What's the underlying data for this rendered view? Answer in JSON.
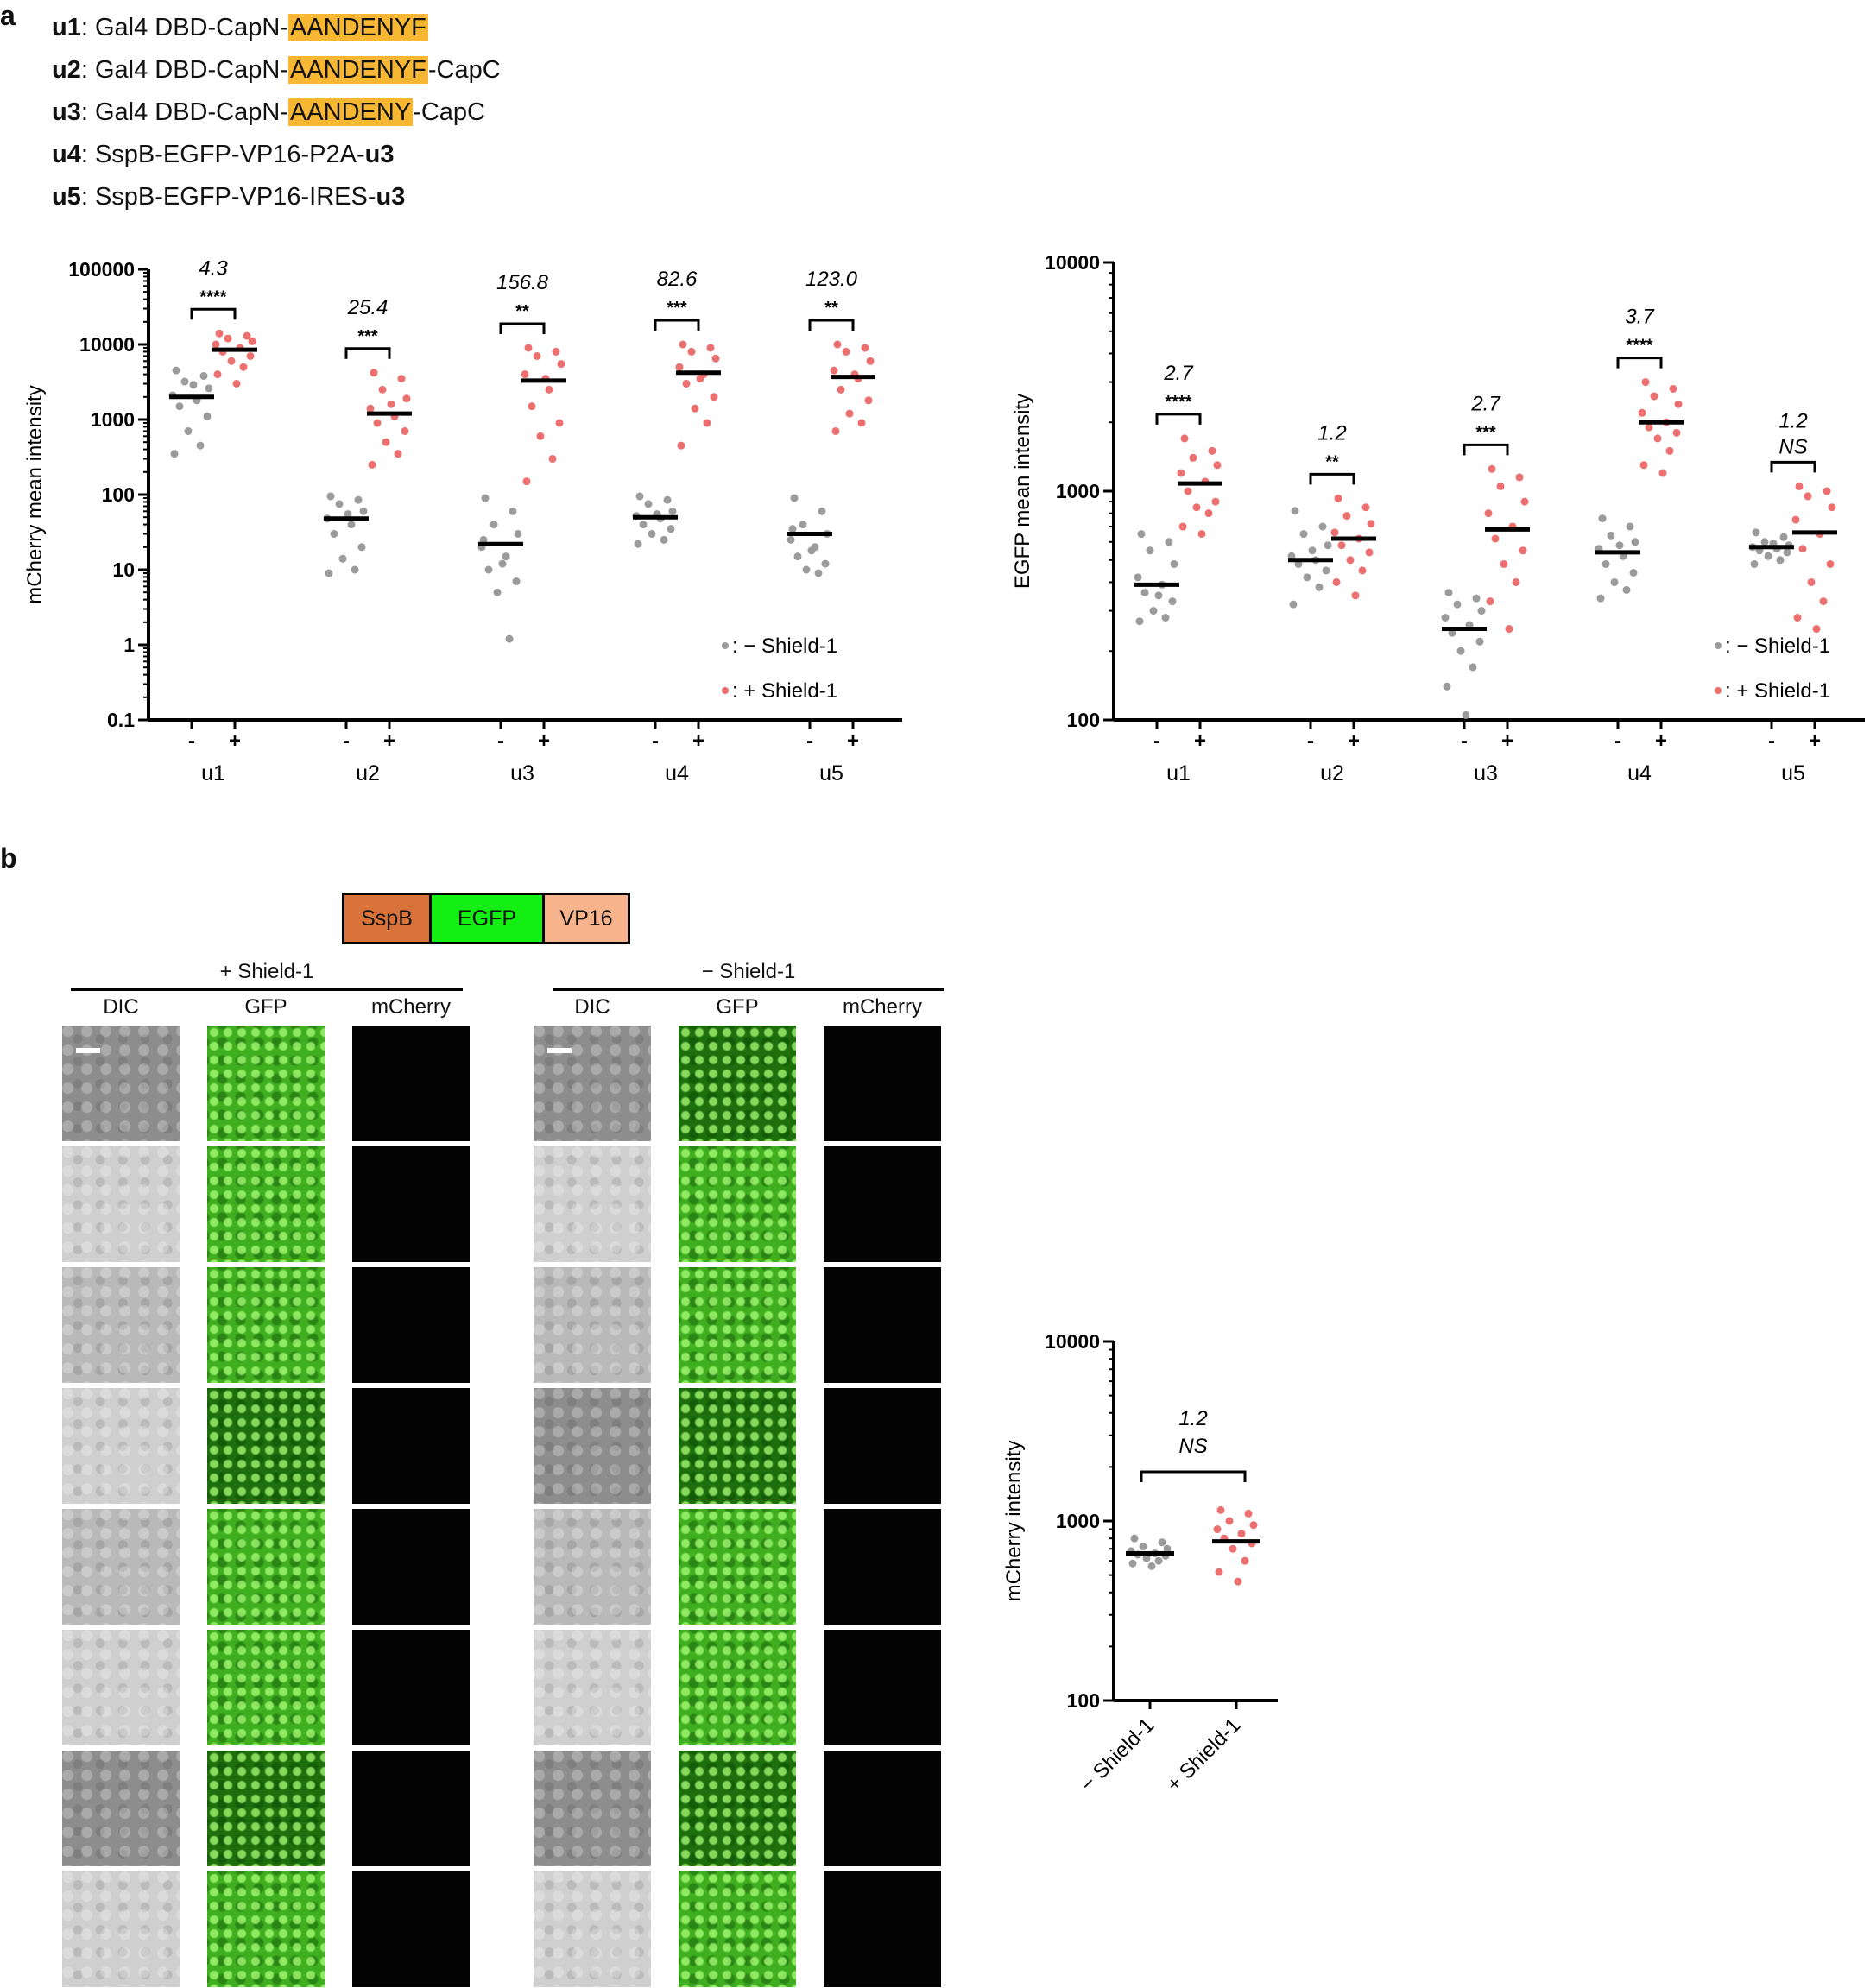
{
  "panel_a_label": "a",
  "panel_b_label": "b",
  "constructs": [
    {
      "id": "u1",
      "pre": "Gal4 DBD-CapN-",
      "hl": "AANDENYF",
      "post": "",
      "bold_tail": ""
    },
    {
      "id": "u2",
      "pre": "Gal4 DBD-CapN-",
      "hl": "AANDENYF",
      "post": "-CapC",
      "bold_tail": ""
    },
    {
      "id": "u3",
      "pre": "Gal4 DBD-CapN-",
      "hl": "AANDENY",
      "post": "-CapC",
      "bold_tail": ""
    },
    {
      "id": "u4",
      "pre": "SspB-EGFP-VP16-P2A-",
      "hl": "",
      "post": "",
      "bold_tail": "u3"
    },
    {
      "id": "u5",
      "pre": "SspB-EGFP-VP16-IRES-",
      "hl": "",
      "post": "",
      "bold_tail": "u3"
    }
  ],
  "colors": {
    "minus": "#9b9b9b",
    "plus": "#ec7070",
    "highlight": "#f7b733",
    "sspb": "#d9733a",
    "egfp": "#13ee13",
    "vp16": "#f7b38b"
  },
  "chart_data": [
    {
      "type": "scatter",
      "ylabel": "mCherry mean intensity",
      "yscale": "log",
      "ylim": [
        0.1,
        100000
      ],
      "yticks": [
        "100000",
        "10000",
        "1000",
        "100",
        "10",
        "1",
        "0.1"
      ],
      "groups": [
        "u1",
        "u2",
        "u3",
        "u4",
        "u5"
      ],
      "sublabels": [
        "-",
        "+"
      ],
      "legend": [
        ": − Shield-1",
        ": + Shield-1"
      ],
      "legend_position": "bottom-right",
      "fold": [
        "4.3",
        "25.4",
        "156.8",
        "82.6",
        "123.0"
      ],
      "sig": [
        "****",
        "***",
        "**",
        "***",
        "**"
      ],
      "minus_median": [
        2000,
        48,
        22,
        50,
        30
      ],
      "plus_median": [
        8500,
        1200,
        3300,
        4200,
        3700
      ],
      "minus_points": [
        [
          4500,
          3800,
          3200,
          2600,
          2100,
          1800,
          1500,
          1100,
          700,
          450,
          350,
          2900
        ],
        [
          95,
          85,
          75,
          60,
          48,
          40,
          30,
          20,
          14,
          10,
          9,
          55
        ],
        [
          90,
          60,
          40,
          30,
          20,
          15,
          10,
          7,
          5,
          1.2,
          25,
          12
        ],
        [
          95,
          85,
          75,
          60,
          52,
          48,
          40,
          35,
          30,
          25,
          22,
          55
        ],
        [
          90,
          60,
          40,
          30,
          25,
          20,
          15,
          12,
          10,
          9,
          35,
          18
        ]
      ],
      "plus_points": [
        [
          14000,
          13000,
          12000,
          11000,
          10000,
          9000,
          8000,
          7000,
          6000,
          5000,
          4000,
          3000
        ],
        [
          4200,
          3500,
          2500,
          1900,
          1400,
          1100,
          900,
          700,
          500,
          350,
          250,
          1600
        ],
        [
          9000,
          8000,
          7000,
          5500,
          4000,
          2500,
          1500,
          900,
          600,
          300,
          150,
          3500
        ],
        [
          10000,
          9000,
          8000,
          6500,
          5000,
          4000,
          3000,
          2000,
          1400,
          900,
          450,
          3500
        ],
        [
          10000,
          9000,
          8000,
          6000,
          4500,
          3500,
          2500,
          1800,
          1200,
          900,
          700,
          4000
        ]
      ]
    },
    {
      "type": "scatter",
      "ylabel": "EGFP mean intensity",
      "yscale": "log",
      "ylim": [
        100,
        10000
      ],
      "yticks": [
        "10000",
        "1000",
        "100"
      ],
      "groups": [
        "u1",
        "u2",
        "u3",
        "u4",
        "u5"
      ],
      "sublabels": [
        "-",
        "+"
      ],
      "legend": [
        ": − Shield-1",
        ": + Shield-1"
      ],
      "legend_position": "bottom-right",
      "fold": [
        "2.7",
        "1.2",
        "2.7",
        "3.7",
        "1.2"
      ],
      "sig": [
        "****",
        "**",
        "***",
        "****",
        "NS"
      ],
      "minus_median": [
        390,
        500,
        250,
        540,
        570
      ],
      "plus_median": [
        1080,
        620,
        680,
        2000,
        660
      ],
      "minus_points": [
        [
          650,
          600,
          550,
          480,
          420,
          390,
          360,
          330,
          300,
          280,
          270,
          350
        ],
        [
          820,
          700,
          650,
          580,
          520,
          500,
          480,
          450,
          420,
          380,
          320,
          550
        ],
        [
          360,
          340,
          320,
          300,
          280,
          260,
          240,
          220,
          200,
          170,
          140,
          105
        ],
        [
          760,
          700,
          640,
          600,
          560,
          520,
          480,
          440,
          400,
          370,
          340,
          580
        ],
        [
          660,
          630,
          600,
          580,
          570,
          560,
          550,
          540,
          520,
          500,
          480,
          590
        ]
      ],
      "plus_points": [
        [
          1700,
          1500,
          1400,
          1300,
          1200,
          1100,
          1000,
          900,
          850,
          800,
          700,
          650
        ],
        [
          930,
          850,
          780,
          720,
          660,
          620,
          580,
          540,
          500,
          450,
          400,
          350
        ],
        [
          1250,
          1150,
          1050,
          900,
          800,
          700,
          620,
          550,
          480,
          400,
          330,
          250
        ],
        [
          3000,
          2800,
          2600,
          2400,
          2200,
          2000,
          1900,
          1800,
          1700,
          1500,
          1300,
          1200
        ],
        [
          1050,
          1000,
          950,
          850,
          750,
          650,
          560,
          480,
          400,
          330,
          280,
          250
        ]
      ]
    },
    {
      "type": "scatter",
      "ylabel": "mCherry intensity",
      "yscale": "log",
      "ylim": [
        100,
        10000
      ],
      "yticks": [
        "10000",
        "1000",
        "100"
      ],
      "xcategories": [
        "− Shield-1",
        "+ Shield-1"
      ],
      "fold": "1.2",
      "sig": "NS",
      "minus_median": 660,
      "plus_median": 770,
      "minus_points": [
        800,
        760,
        720,
        700,
        680,
        660,
        650,
        640,
        620,
        600,
        580,
        560
      ],
      "plus_points": [
        1150,
        1100,
        1000,
        950,
        900,
        850,
        800,
        750,
        700,
        600,
        520,
        460
      ]
    }
  ],
  "panel_b": {
    "schematic": [
      "SspB",
      "EGFP",
      "VP16"
    ],
    "groups": [
      "+ Shield-1",
      "− Shield-1"
    ],
    "columns": [
      "DIC",
      "GFP",
      "mCherry"
    ]
  }
}
